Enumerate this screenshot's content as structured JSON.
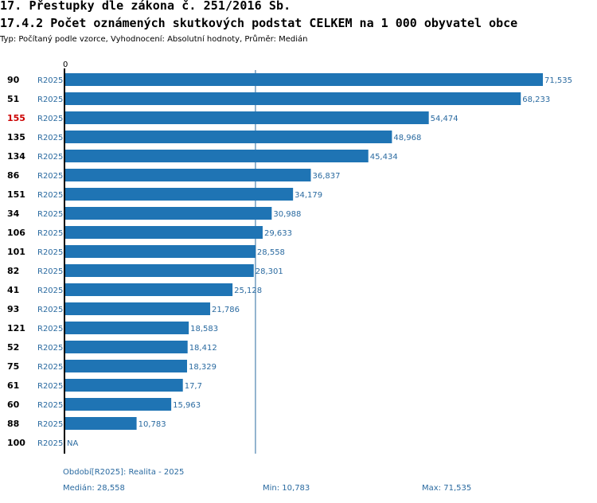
{
  "header": {
    "title": "17. Přestupky dle zákona č. 251/2016 Sb.",
    "subtitle": "17.4.2 Počet oznámených skutkových podstat CELKEM na 1 000 obyvatel obce",
    "type_line": "Typ: Počítaný podle vzorce, Vyhodnocení: Absolutní hodnoty, Průměr: Medián"
  },
  "chart_data": {
    "type": "bar",
    "orientation": "horizontal",
    "axis_zero_label": "0",
    "xlim": [
      0,
      71.535
    ],
    "median_value": 28.558,
    "highlight_color": "#cc0000",
    "bar_color": "#1f74b4",
    "rows": [
      {
        "id": "90",
        "period": "R2025",
        "value": 71.535,
        "label": "71,535",
        "highlight": false
      },
      {
        "id": "51",
        "period": "R2025",
        "value": 68.233,
        "label": "68,233",
        "highlight": false
      },
      {
        "id": "155",
        "period": "R2025",
        "value": 54.474,
        "label": "54,474",
        "highlight": true
      },
      {
        "id": "135",
        "period": "R2025",
        "value": 48.968,
        "label": "48,968",
        "highlight": false
      },
      {
        "id": "134",
        "period": "R2025",
        "value": 45.434,
        "label": "45,434",
        "highlight": false
      },
      {
        "id": "86",
        "period": "R2025",
        "value": 36.837,
        "label": "36,837",
        "highlight": false
      },
      {
        "id": "151",
        "period": "R2025",
        "value": 34.179,
        "label": "34,179",
        "highlight": false
      },
      {
        "id": "34",
        "period": "R2025",
        "value": 30.988,
        "label": "30,988",
        "highlight": false
      },
      {
        "id": "106",
        "period": "R2025",
        "value": 29.633,
        "label": "29,633",
        "highlight": false
      },
      {
        "id": "101",
        "period": "R2025",
        "value": 28.558,
        "label": "28,558",
        "highlight": false
      },
      {
        "id": "82",
        "period": "R2025",
        "value": 28.301,
        "label": "28,301",
        "highlight": false
      },
      {
        "id": "41",
        "period": "R2025",
        "value": 25.128,
        "label": "25,128",
        "highlight": false
      },
      {
        "id": "93",
        "period": "R2025",
        "value": 21.786,
        "label": "21,786",
        "highlight": false
      },
      {
        "id": "121",
        "period": "R2025",
        "value": 18.583,
        "label": "18,583",
        "highlight": false
      },
      {
        "id": "52",
        "period": "R2025",
        "value": 18.412,
        "label": "18,412",
        "highlight": false
      },
      {
        "id": "75",
        "period": "R2025",
        "value": 18.329,
        "label": "18,329",
        "highlight": false
      },
      {
        "id": "61",
        "period": "R2025",
        "value": 17.7,
        "label": "17,7",
        "highlight": false
      },
      {
        "id": "60",
        "period": "R2025",
        "value": 15.963,
        "label": "15,963",
        "highlight": false
      },
      {
        "id": "88",
        "period": "R2025",
        "value": 10.783,
        "label": "10,783",
        "highlight": false
      },
      {
        "id": "100",
        "period": "R2025",
        "value": null,
        "label": "NA",
        "highlight": false
      }
    ]
  },
  "footer": {
    "period_note": "Období[R2025]: Realita - 2025",
    "median": "Medián: 28,558",
    "min": "Min: 10,783",
    "max": "Max: 71,535"
  }
}
